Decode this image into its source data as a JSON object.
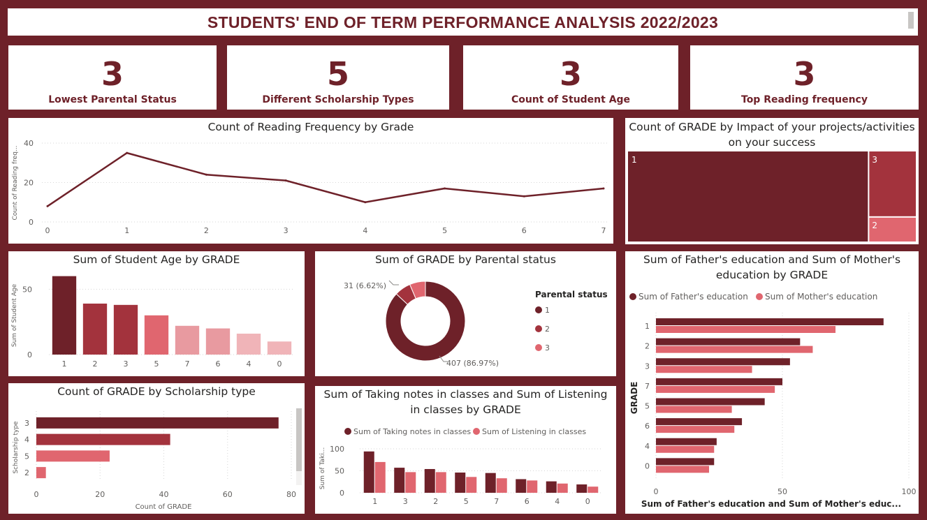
{
  "header": {
    "title": "STUDENTS' END OF TERM PERFORMANCE ANALYSIS 2022/2023"
  },
  "kpis": [
    {
      "value": "3",
      "label": "Lowest Parental Status"
    },
    {
      "value": "5",
      "label": "Different Scholarship Types"
    },
    {
      "value": "3",
      "label": "Count of Student Age"
    },
    {
      "value": "3",
      "label": "Top  Reading frequency"
    }
  ],
  "colors": {
    "dark": "#6e2129",
    "mid": "#a3333d",
    "light": "#e0666f",
    "lighter": "#e89aa0",
    "lightest": "#f0b4b8"
  },
  "chart_data": [
    {
      "id": "reading",
      "type": "line",
      "title": "Count of Reading Frequency by Grade",
      "ylabel": "Count of Reading freq...",
      "xlabel": "",
      "x": [
        0,
        1,
        2,
        3,
        4,
        5,
        6,
        7
      ],
      "values": [
        8,
        35,
        24,
        21,
        10,
        17,
        13,
        17
      ],
      "yticks": [
        0,
        20,
        40
      ],
      "ylim": [
        0,
        40
      ],
      "grid": true
    },
    {
      "id": "impact",
      "type": "treemap",
      "title": "Count of GRADE by Impact of your projects/activities on your success",
      "categories": [
        "1",
        "3",
        "2"
      ],
      "values": [
        112,
        16,
        6
      ]
    },
    {
      "id": "age",
      "type": "bar",
      "title": "Sum of Student Age by GRADE",
      "ylabel": "Sum of Student Age",
      "categories": [
        "1",
        "2",
        "3",
        "5",
        "7",
        "6",
        "4",
        "0"
      ],
      "values": [
        60,
        39,
        38,
        30,
        22,
        20,
        16,
        10
      ],
      "yticks": [
        0,
        50
      ],
      "ylim": [
        0,
        63
      ]
    },
    {
      "id": "parental",
      "type": "pie",
      "title": "Sum of GRADE by Parental status",
      "legend_title": "Parental status",
      "categories": [
        "1",
        "2",
        "3"
      ],
      "values": [
        407,
        31,
        30
      ],
      "labels": [
        "407 (86.97%)",
        "31 (6.62%)"
      ]
    },
    {
      "id": "parents",
      "type": "bar",
      "title": "Sum of Father's education and Sum of Mother's education by GRADE",
      "ylabel": "GRADE",
      "xlabel": "Sum of Father's education and Sum of Mother's educ...",
      "categories": [
        "1",
        "2",
        "3",
        "7",
        "5",
        "6",
        "4",
        "0"
      ],
      "series": [
        {
          "name": "Sum of Father's education",
          "values": [
            90,
            57,
            53,
            50,
            43,
            34,
            24,
            23
          ]
        },
        {
          "name": "Sum of Mother's education",
          "values": [
            71,
            62,
            38,
            47,
            30,
            31,
            23,
            21
          ]
        }
      ],
      "xticks": [
        0,
        50,
        100
      ],
      "xlim": [
        0,
        100
      ]
    },
    {
      "id": "scholarship",
      "type": "bar",
      "title": "Count of GRADE by Scholarship type",
      "ylabel": "Scholarship type",
      "xlabel": "Count of GRADE",
      "categories": [
        "3",
        "4",
        "5",
        "2"
      ],
      "values": [
        76,
        42,
        23,
        3
      ],
      "xticks": [
        0,
        20,
        40,
        60,
        80
      ],
      "xlim": [
        0,
        80
      ]
    },
    {
      "id": "notes",
      "type": "bar",
      "title": "Sum of Taking notes in classes and Sum of Listening in classes by GRADE",
      "ylabel": "Sum of Taki...",
      "categories": [
        "1",
        "3",
        "2",
        "5",
        "7",
        "6",
        "4",
        "0"
      ],
      "series": [
        {
          "name": "Sum of Taking notes in classes",
          "values": [
            94,
            57,
            54,
            46,
            45,
            31,
            26,
            19
          ]
        },
        {
          "name": "Sum of Listening in classes",
          "values": [
            70,
            47,
            47,
            36,
            33,
            28,
            21,
            14
          ]
        }
      ],
      "yticks": [
        0,
        50,
        100
      ],
      "ylim": [
        0,
        100
      ]
    }
  ]
}
